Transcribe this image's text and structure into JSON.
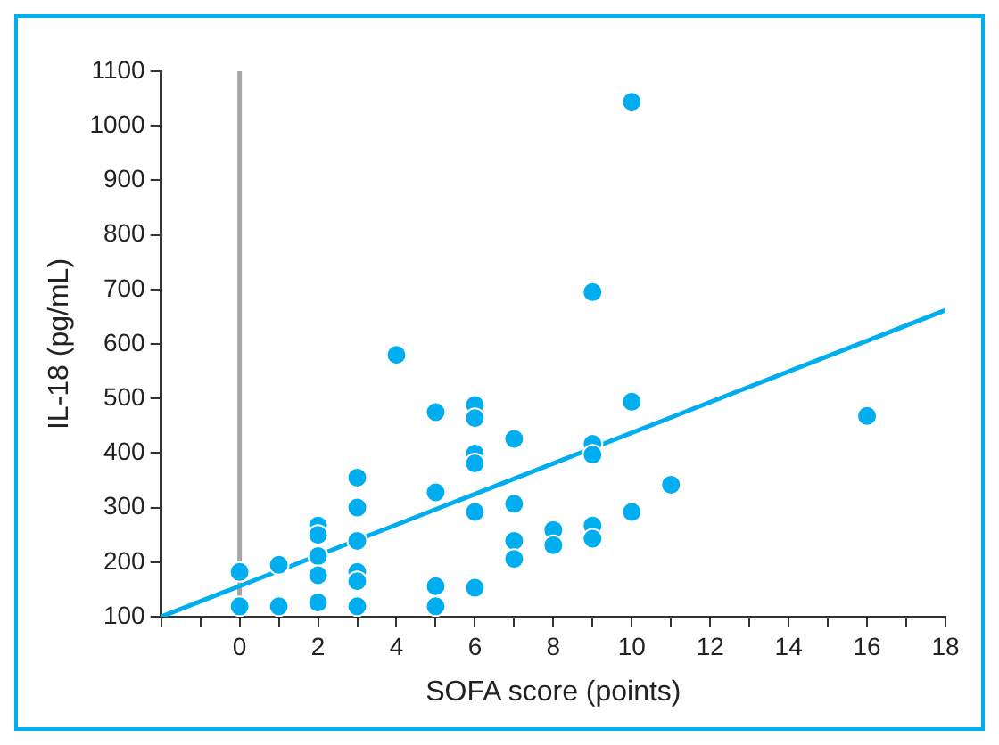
{
  "chart_data": {
    "type": "scatter",
    "xlabel": "SOFA score (points)",
    "ylabel": "IL-18 (pg/mL)",
    "xlim": [
      -2,
      18
    ],
    "xticks": [
      {
        "value": -2,
        "label": null
      },
      {
        "value": -1,
        "label": null
      },
      0,
      {
        "value": 1,
        "label": null
      },
      2,
      {
        "value": 3,
        "label": null
      },
      4,
      {
        "value": 5,
        "label": null
      },
      6,
      {
        "value": 7,
        "label": null
      },
      8,
      {
        "value": 9,
        "label": null
      },
      10,
      {
        "value": 11,
        "label": null
      },
      12,
      {
        "value": 13,
        "label": null
      },
      14,
      {
        "value": 15,
        "label": null
      },
      16,
      {
        "value": 17,
        "label": null
      },
      18
    ],
    "ylim": [
      100,
      1100
    ],
    "yticks": [
      100,
      200,
      300,
      400,
      500,
      600,
      700,
      800,
      900,
      1000,
      1100
    ],
    "marker": "circle",
    "series": [
      {
        "type": "scatter",
        "color": "#00aeef",
        "x": [
          0,
          0,
          1,
          1,
          2,
          2,
          2,
          2,
          2,
          3,
          3,
          3,
          3,
          3,
          3,
          4,
          5,
          5,
          5,
          5,
          6,
          6,
          6,
          6,
          6,
          6,
          7,
          7,
          7,
          7,
          8,
          8,
          9,
          9,
          9,
          9,
          9,
          10,
          10,
          10,
          11,
          16
        ],
        "values": [
          182,
          119,
          195,
          119,
          267,
          250,
          211,
          176,
          126,
          355,
          300,
          239,
          182,
          165,
          119,
          580,
          475,
          328,
          156,
          119,
          488,
          464,
          399,
          381,
          292,
          153,
          426,
          307,
          239,
          206,
          259,
          231,
          417,
          397,
          267,
          243,
          695,
          1044,
          494,
          292,
          342,
          468
        ]
      },
      {
        "type": "line",
        "color": "#00aeef",
        "marker": "none",
        "x": [
          -2,
          18
        ],
        "values": [
          100,
          662
        ]
      }
    ],
    "ref_lines": [
      {
        "axis": "x",
        "value": 0,
        "color": "#a6a6a6"
      }
    ]
  }
}
